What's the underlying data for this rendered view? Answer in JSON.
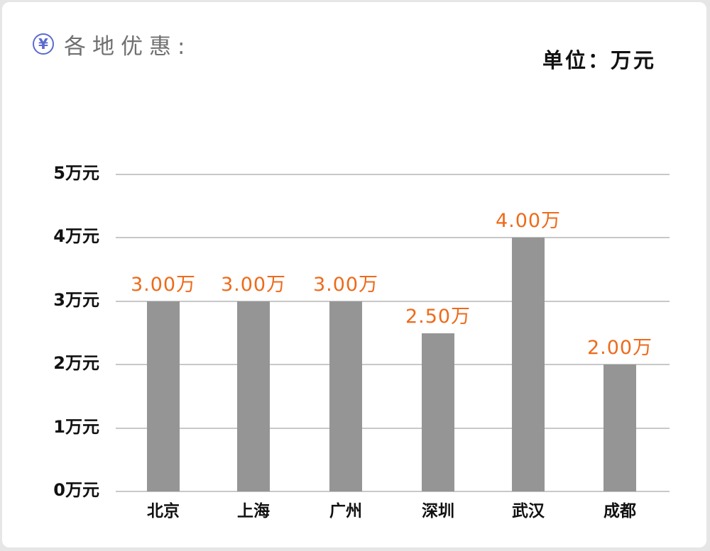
{
  "header": {
    "icon": "yen-circle-icon",
    "icon_glyph": "¥",
    "title": "各地优惠:",
    "unit_label": "单位：万元"
  },
  "colors": {
    "bar": "#959595",
    "value_label": "#ee6a1a",
    "icon": "#5b6bd0",
    "title": "#707070",
    "gridline": "#c8c8c8"
  },
  "yaxis": {
    "ticks": [
      "0万元",
      "1万元",
      "2万元",
      "3万元",
      "4万元",
      "5万元"
    ]
  },
  "bars": [
    {
      "city": "北京",
      "value": 3.0,
      "label": "3.00万"
    },
    {
      "city": "上海",
      "value": 3.0,
      "label": "3.00万"
    },
    {
      "city": "广州",
      "value": 3.0,
      "label": "3.00万"
    },
    {
      "city": "深圳",
      "value": 2.5,
      "label": "2.50万"
    },
    {
      "city": "武汉",
      "value": 4.0,
      "label": "4.00万"
    },
    {
      "city": "成都",
      "value": 2.0,
      "label": "2.00万"
    }
  ],
  "chart_data": {
    "type": "bar",
    "title": "各地优惠:",
    "subtitle": "单位：万元",
    "categories": [
      "北京",
      "上海",
      "广州",
      "深圳",
      "武汉",
      "成都"
    ],
    "values": [
      3.0,
      3.0,
      3.0,
      2.5,
      4.0,
      2.0
    ],
    "data_labels": [
      "3.00万",
      "3.00万",
      "3.00万",
      "2.50万",
      "4.00万",
      "2.00万"
    ],
    "xlabel": "",
    "ylabel": "",
    "ylim": [
      0,
      5
    ],
    "yticks": [
      0,
      1,
      2,
      3,
      4,
      5
    ],
    "ytick_labels": [
      "0万元",
      "1万元",
      "2万元",
      "3万元",
      "4万元",
      "5万元"
    ],
    "grid": true,
    "legend": null
  }
}
